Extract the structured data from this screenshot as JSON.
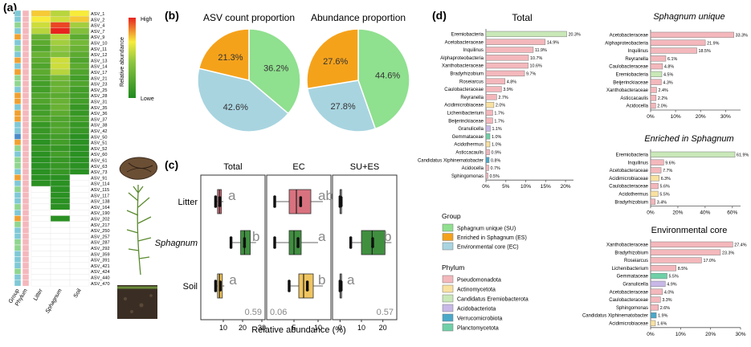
{
  "panel_labels": {
    "a": "(a)",
    "b": "(b)",
    "c": "(c)",
    "d": "(d)"
  },
  "heatmap": {
    "legend_title": "Relative abundance",
    "legend_high": "High",
    "legend_low": "Lowe",
    "col_labels": [
      "Group",
      "Phylum",
      "Litter",
      "Sphagnum",
      "Soil"
    ],
    "rows": [
      "ASV_1",
      "ASV_2",
      "ASV_4",
      "ASV_7",
      "ASV_9",
      "ASV_10",
      "ASV_11",
      "ASV_12",
      "ASV_13",
      "ASV_14",
      "ASV_17",
      "ASV_21",
      "ASV_23",
      "ASV_25",
      "ASV_28",
      "ASV_31",
      "ASV_35",
      "ASV_36",
      "ASV_37",
      "ASV_38",
      "ASV_42",
      "ASV_50",
      "ASV_51",
      "ASV_52",
      "ASV_60",
      "ASV_61",
      "ASV_63",
      "ASV_73",
      "ASV_91",
      "ASV_114",
      "ASV_115",
      "ASV_117",
      "ASV_138",
      "ASV_164",
      "ASV_190",
      "ASV_202",
      "ASV_217",
      "ASV_250",
      "ASV_257",
      "ASV_287",
      "ASV_292",
      "ASV_359",
      "ASV_391",
      "ASV_421",
      "ASV_424",
      "ASV_440",
      "ASV_470"
    ],
    "group_colors": [
      "#7fc9d6",
      "#7fc9d6",
      "#8fd68f",
      "#7fc9d6",
      "#f0a030",
      "#7fc9d6",
      "#8fd68f",
      "#7fc9d6",
      "#f0a030",
      "#7fc9d6",
      "#f0a030",
      "#8fd68f",
      "#8fd68f",
      "#7fc9d6",
      "#f0a030",
      "#f0a030",
      "#7fc9d6",
      "#f0a030",
      "#f0a030",
      "#7fc9d6",
      "#7fc9d6",
      "#4a8cc8",
      "#f0a030",
      "#8fd68f",
      "#7fc9d6",
      "#8fd68f",
      "#8fd68f",
      "#7fc9d6",
      "#f0a030",
      "#7fc9d6",
      "#8fd68f",
      "#7fc9d6",
      "#7fc9d6",
      "#8fd68f",
      "#7fc9d6",
      "#f0a030",
      "#8fd68f",
      "#7fc9d6",
      "#7fc9d6",
      "#8fd68f",
      "#8fd68f",
      "#7fc9d6",
      "#7fc9d6",
      "#7fc9d6",
      "#8fd68f",
      "#7fc9d6",
      "#7fc9d6"
    ],
    "phylum_colors": [
      "#f4b8bc",
      "#f4b8bc",
      "#f4b8bc",
      "#f4b8bc",
      "#f4b8bc",
      "#f4b8bc",
      "#f4b8bc",
      "#f4b8bc",
      "#f4b8bc",
      "#f4b8bc",
      "#f4b8bc",
      "#f4b8bc",
      "#f4b8bc",
      "#f4b8bc",
      "#f4b8bc",
      "#f4b8bc",
      "#f4b8bc",
      "#f4b8bc",
      "#f4b8bc",
      "#f4b8bc",
      "#f4b8bc",
      "#f4b8bc",
      "#f4b8bc",
      "#f4b8bc",
      "#f4b8bc",
      "#f4b8bc",
      "#f4b8bc",
      "#f4b8bc",
      "#f4b8bc",
      "#f4b8bc",
      "#f4b8bc",
      "#f4b8bc",
      "#f4b8bc",
      "#f4b8bc",
      "#f4b8bc",
      "#f4b8bc",
      "#f4b8bc",
      "#f4b8bc",
      "#f4b8bc",
      "#f4b8bc",
      "#f4b8bc",
      "#f4b8bc",
      "#f4b8bc",
      "#f4b8bc",
      "#f4b8bc",
      "#f4b8bc",
      "#f4b8bc"
    ],
    "values": [
      [
        0.75,
        0.55,
        0.7
      ],
      [
        0.7,
        0.6,
        0.75
      ],
      [
        0.6,
        0.95,
        0.5
      ],
      [
        0.55,
        1.0,
        0.4
      ],
      [
        0.3,
        0.55,
        0.25
      ],
      [
        0.25,
        0.5,
        0.35
      ],
      [
        0.2,
        0.45,
        0.3
      ],
      [
        0.3,
        0.4,
        0.25
      ],
      [
        0.25,
        0.6,
        0.2
      ],
      [
        0.2,
        0.6,
        0.25
      ],
      [
        0.25,
        0.55,
        0.2
      ],
      [
        0.2,
        0.35,
        0.15
      ],
      [
        0.15,
        0.3,
        0.2
      ],
      [
        0.15,
        0.3,
        0.15
      ],
      [
        0.2,
        0.25,
        0.15
      ],
      [
        0.2,
        0.3,
        0.15
      ],
      [
        0.15,
        0.3,
        0.1
      ],
      [
        0.15,
        0.25,
        0.1
      ],
      [
        0.2,
        0.2,
        0.15
      ],
      [
        0.1,
        0.2,
        0.1
      ],
      [
        0.1,
        0.2,
        0.1
      ],
      [
        0.1,
        0.15,
        0.05
      ],
      [
        0.05,
        0.15,
        0.05
      ],
      [
        0.1,
        0.1,
        0.05
      ],
      [
        0.05,
        0.15,
        0.05
      ],
      [
        0.05,
        0.1,
        0.05
      ],
      [
        0.05,
        0.1,
        0.05
      ],
      [
        0.05,
        0.1,
        0.05
      ],
      [
        0.05,
        0.05,
        0.0
      ],
      [
        0.05,
        0.05,
        0.0
      ],
      [
        0.0,
        0.05,
        0.0
      ],
      [
        0.0,
        0.05,
        0.0
      ],
      [
        0.0,
        0.05,
        0.0
      ],
      [
        0.0,
        0.05,
        0.0
      ],
      [
        0.0,
        0.0,
        0.0
      ],
      [
        0.0,
        0.05,
        0.0
      ],
      [
        0.0,
        0.0,
        0.0
      ],
      [
        0.0,
        0.0,
        0.0
      ],
      [
        0.0,
        0.0,
        0.0
      ],
      [
        0.0,
        0.0,
        0.0
      ],
      [
        0.0,
        0.0,
        0.0
      ],
      [
        0.0,
        0.0,
        0.0
      ],
      [
        0.0,
        0.0,
        0.0
      ],
      [
        0.0,
        0.0,
        0.0
      ],
      [
        0.0,
        0.0,
        0.0
      ],
      [
        0.0,
        0.0,
        0.0
      ],
      [
        0.0,
        0.0,
        0.0
      ]
    ]
  },
  "chart_data": [
    {
      "type": "pie",
      "title": "ASV count proportion",
      "slices": [
        {
          "label": "Sphagnum unique (SU)",
          "value": 36.2,
          "text": "36.2%",
          "color": "#8fe08f"
        },
        {
          "label": "Environmental core (EC)",
          "value": 42.6,
          "text": "42.6%",
          "color": "#a8d4e0"
        },
        {
          "label": "Enriched in Sphagnum (ES)",
          "value": 21.3,
          "text": "21.3%",
          "color": "#f5a21b"
        }
      ]
    },
    {
      "type": "pie",
      "title": "Abundance proportion",
      "slices": [
        {
          "label": "Sphagnum unique (SU)",
          "value": 44.6,
          "text": "44.6%",
          "color": "#8fe08f"
        },
        {
          "label": "Environmental core (EC)",
          "value": 27.8,
          "text": "27.8%",
          "color": "#a8d4e0"
        },
        {
          "label": "Enriched in Sphagnum (ES)",
          "value": 27.6,
          "text": "27.6%",
          "color": "#f5a21b"
        }
      ]
    },
    {
      "type": "box",
      "xlabel": "Relative abundance (%)",
      "row_labels": [
        "Litter",
        "Sphagnum",
        "Soil"
      ],
      "panels": [
        {
          "title": "Total",
          "xlim": [
            0,
            30
          ],
          "ticks": [
            10,
            20,
            30
          ],
          "stat": "0.59",
          "boxes": [
            {
              "q1": 7,
              "med": 8,
              "q3": 9,
              "lo": 6,
              "hi": 10,
              "color": "#d9727f",
              "letter": "a"
            },
            {
              "q1": 19,
              "med": 21,
              "q3": 24,
              "lo": 14,
              "hi": 27,
              "color": "#3f8f3f",
              "letter": "b"
            },
            {
              "q1": 7,
              "med": 8,
              "q3": 9.5,
              "lo": 6,
              "hi": 10.5,
              "color": "#f0c560",
              "letter": "a"
            }
          ]
        },
        {
          "title": "EC",
          "xlim": [
            0,
            12
          ],
          "ticks": [
            5,
            10
          ],
          "stat": "0.06",
          "boxes": [
            {
              "q1": 4,
              "med": 5.5,
              "q3": 8.5,
              "lo": 1,
              "hi": 11,
              "color": "#d9727f",
              "letter": "ab"
            },
            {
              "q1": 4,
              "med": 5,
              "q3": 6.5,
              "lo": 1,
              "hi": 10,
              "color": "#3f8f3f",
              "letter": "a"
            },
            {
              "q1": 6,
              "med": 7,
              "q3": 9,
              "lo": 4,
              "hi": 11,
              "color": "#f0c560",
              "letter": "b"
            }
          ]
        },
        {
          "title": "SU+ES",
          "xlim": [
            -2,
            25
          ],
          "ticks": [
            0,
            10,
            20
          ],
          "stat": "0.57",
          "boxes": [
            {
              "q1": 0,
              "med": 0.2,
              "q3": 0.5,
              "lo": 0,
              "hi": 1,
              "color": "#ffffff",
              "letter": ""
            },
            {
              "q1": 10,
              "med": 15,
              "q3": 21,
              "lo": 5,
              "hi": 24,
              "color": "#3f8f3f",
              "letter": "b"
            },
            {
              "q1": 0,
              "med": 0.2,
              "q3": 0.5,
              "lo": 0,
              "hi": 1,
              "color": "#ffffff",
              "letter": "a"
            }
          ]
        }
      ]
    },
    {
      "type": "bar",
      "title": "Total",
      "xlim": [
        0,
        22
      ],
      "ticks": [
        0,
        5,
        10,
        15,
        20
      ],
      "tick_labels": [
        "0%",
        "5%",
        "10%",
        "15%",
        "20%"
      ],
      "bars": [
        {
          "label": "Eremiobacteria",
          "value": 20.3,
          "text": "20.3%",
          "color": "#c9e8b8"
        },
        {
          "label": "Acetobacteraceae",
          "value": 14.9,
          "text": "14.9%",
          "color": "#f4b8bc"
        },
        {
          "label": "Inquilinus",
          "value": 11.9,
          "text": "11.9%",
          "color": "#f4b8bc"
        },
        {
          "label": "Alphaproteobacteria",
          "value": 10.7,
          "text": "10.7%",
          "color": "#f4b8bc"
        },
        {
          "label": "Xanthobacteraceae",
          "value": 10.6,
          "text": "10.6%",
          "color": "#f4b8bc"
        },
        {
          "label": "Bradyrhizobium",
          "value": 9.7,
          "text": "9.7%",
          "color": "#f4b8bc"
        },
        {
          "label": "Roseiarcus",
          "value": 4.8,
          "text": "4.8%",
          "color": "#f4b8bc"
        },
        {
          "label": "Caulobacteraceae",
          "value": 3.9,
          "text": "3.9%",
          "color": "#f4b8bc"
        },
        {
          "label": "Reyranella",
          "value": 2.7,
          "text": "2.7%",
          "color": "#f4b8bc"
        },
        {
          "label": "Acidimicrobiaceae",
          "value": 2.0,
          "text": "2.0%",
          "color": "#f9e1a0"
        },
        {
          "label": "Lichenibacterium",
          "value": 1.7,
          "text": "1.7%",
          "color": "#f4b8bc"
        },
        {
          "label": "Beijerinckiaceae",
          "value": 1.7,
          "text": "1.7%",
          "color": "#f4b8bc"
        },
        {
          "label": "Granulicella",
          "value": 1.1,
          "text": "1.1%",
          "color": "#c7b8e8"
        },
        {
          "label": "Gemmataceae",
          "value": 1.0,
          "text": "1.0%",
          "color": "#6fd0a8"
        },
        {
          "label": "Acidothermus",
          "value": 1.0,
          "text": "1.0%",
          "color": "#f9e1a0"
        },
        {
          "label": "Asticcacaulis",
          "value": 0.9,
          "text": "0.9%",
          "color": "#f4b8bc"
        },
        {
          "label": "Candidatus Xiphinematobacter",
          "value": 0.8,
          "text": "0.8%",
          "color": "#4aa8c8"
        },
        {
          "label": "Acidocella",
          "value": 0.7,
          "text": "0.7%",
          "color": "#f4b8bc"
        },
        {
          "label": "Sphingomonas",
          "value": 0.5,
          "text": "0.5%",
          "color": "#f4b8bc"
        }
      ]
    },
    {
      "type": "bar",
      "title": "Sphagnum unique",
      "xlim": [
        0,
        36
      ],
      "ticks": [
        0,
        10,
        20,
        30
      ],
      "tick_labels": [
        "0%",
        "10%",
        "20%",
        "30%"
      ],
      "bars": [
        {
          "label": "Acetobacteraceae",
          "value": 33.3,
          "text": "33.3%",
          "color": "#f4b8bc"
        },
        {
          "label": "Alphaproteobacteria",
          "value": 21.9,
          "text": "21.9%",
          "color": "#f4b8bc"
        },
        {
          "label": "Inquilinus",
          "value": 18.5,
          "text": "18.5%",
          "color": "#f4b8bc"
        },
        {
          "label": "Reyranella",
          "value": 6.1,
          "text": "6.1%",
          "color": "#f4b8bc"
        },
        {
          "label": "Caulobacteraceae",
          "value": 4.8,
          "text": "4.8%",
          "color": "#f4b8bc"
        },
        {
          "label": "Eremiobacteria",
          "value": 4.5,
          "text": "4.5%",
          "color": "#c9e8b8"
        },
        {
          "label": "Beijerinckiaceae",
          "value": 4.3,
          "text": "4.3%",
          "color": "#f4b8bc"
        },
        {
          "label": "Xanthobacteraceae",
          "value": 2.4,
          "text": "2.4%",
          "color": "#f4b8bc"
        },
        {
          "label": "Asticcacaulis",
          "value": 2.2,
          "text": "2.2%",
          "color": "#f4b8bc"
        },
        {
          "label": "Acidocella",
          "value": 2.0,
          "text": "2.0%",
          "color": "#f4b8bc"
        }
      ]
    },
    {
      "type": "bar",
      "title": "Enriched in Sphagnum",
      "xlim": [
        0,
        66
      ],
      "ticks": [
        0,
        20,
        40,
        60
      ],
      "tick_labels": [
        "0%",
        "20%",
        "40%",
        "60%"
      ],
      "bars": [
        {
          "label": "Eremiobacteria",
          "value": 61.9,
          "text": "61.9%",
          "color": "#c9e8b8"
        },
        {
          "label": "Inquilinus",
          "value": 9.6,
          "text": "9.6%",
          "color": "#f4b8bc"
        },
        {
          "label": "Acetobacteraceae",
          "value": 7.7,
          "text": "7.7%",
          "color": "#f4b8bc"
        },
        {
          "label": "Acidimicrobiaceae",
          "value": 6.3,
          "text": "6.3%",
          "color": "#f9e1a0"
        },
        {
          "label": "Caulobacteraceae",
          "value": 5.6,
          "text": "5.6%",
          "color": "#f4b8bc"
        },
        {
          "label": "Acidothermus",
          "value": 5.5,
          "text": "5.5%",
          "color": "#f9e1a0"
        },
        {
          "label": "Bradyrhizobium",
          "value": 3.4,
          "text": "3.4%",
          "color": "#f4b8bc"
        }
      ]
    },
    {
      "type": "bar",
      "title": "Environmental core",
      "xlim": [
        0,
        30
      ],
      "ticks": [
        0,
        10,
        20,
        30
      ],
      "tick_labels": [
        "0%",
        "10%",
        "20%",
        "30%"
      ],
      "bars": [
        {
          "label": "Xanthobacteraceae",
          "value": 27.4,
          "text": "27.4%",
          "color": "#f4b8bc"
        },
        {
          "label": "Bradyrhizobium",
          "value": 23.3,
          "text": "23.3%",
          "color": "#f4b8bc"
        },
        {
          "label": "Roseiarcus",
          "value": 17.0,
          "text": "17.0%",
          "color": "#f4b8bc"
        },
        {
          "label": "Lichenibacterium",
          "value": 8.5,
          "text": "8.5%",
          "color": "#f4b8bc"
        },
        {
          "label": "Gemmataceae",
          "value": 5.5,
          "text": "5.5%",
          "color": "#6fd0a8"
        },
        {
          "label": "Granulicella",
          "value": 4.9,
          "text": "4.9%",
          "color": "#c7b8e8"
        },
        {
          "label": "Acetobacteraceae",
          "value": 4.0,
          "text": "4.0%",
          "color": "#f4b8bc"
        },
        {
          "label": "Caulobacteraceae",
          "value": 3.3,
          "text": "3.3%",
          "color": "#f4b8bc"
        },
        {
          "label": "Sphingomonas",
          "value": 2.6,
          "text": "2.6%",
          "color": "#f4b8bc"
        },
        {
          "label": "Candidatus Xiphinematobacter",
          "value": 1.9,
          "text": "1.9%",
          "color": "#4aa8c8"
        },
        {
          "label": "Acidimicrobiaceae",
          "value": 1.6,
          "text": "1.6%",
          "color": "#f9e1a0"
        }
      ]
    }
  ],
  "legend": {
    "group_title": "Group",
    "groups": [
      {
        "label": "Sphagnum unique (SU)",
        "color": "#8fe08f"
      },
      {
        "label": "Enriched in Sphagnum (ES)",
        "color": "#f5a21b"
      },
      {
        "label": "Environmental core (EC)",
        "color": "#a8d4e0"
      }
    ],
    "phylum_title": "Phylum",
    "phyla": [
      {
        "label": "Pseudomonadota",
        "color": "#f4b8bc"
      },
      {
        "label": "Actinomycetota",
        "color": "#f9e1a0"
      },
      {
        "label": "Candidatus Eremiobacterota",
        "color": "#c9e8b8"
      },
      {
        "label": "Acidobacteriota",
        "color": "#c7b8e8"
      },
      {
        "label": "Verrucomicrobiota",
        "color": "#4aa8c8"
      },
      {
        "label": "Planctomycetota",
        "color": "#6fd0a8"
      }
    ]
  }
}
